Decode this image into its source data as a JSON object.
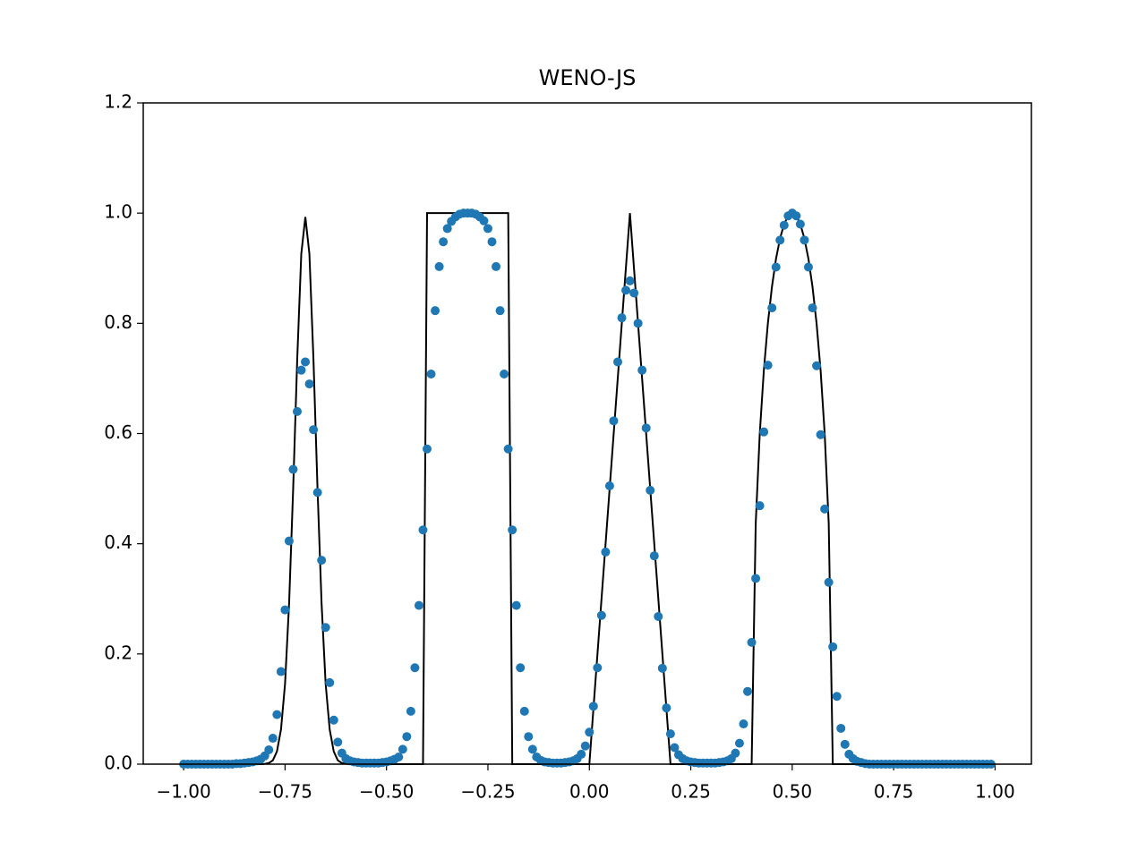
{
  "chart_data": {
    "type": "line",
    "title": "WENO-JS",
    "xlim": [
      -1.0995,
      1.0895
    ],
    "ylim": [
      0,
      1.2
    ],
    "xticks": [
      {
        "value": -1,
        "label": "−1.00"
      },
      {
        "value": -0.75,
        "label": "−0.75"
      },
      {
        "value": -0.5,
        "label": "−0.50"
      },
      {
        "value": -0.25,
        "label": "−0.25"
      },
      {
        "value": 0,
        "label": "0.00"
      },
      {
        "value": 0.25,
        "label": "0.25"
      },
      {
        "value": 0.5,
        "label": "0.50"
      },
      {
        "value": 0.75,
        "label": "0.75"
      },
      {
        "value": 1,
        "label": "1.00"
      }
    ],
    "yticks": [
      {
        "value": 0,
        "label": "0.0"
      },
      0.2,
      0.4,
      0.6,
      0.8,
      {
        "value": 1,
        "label": "1.0"
      },
      1.2
    ],
    "grid": false,
    "series": [
      {
        "type": "line",
        "color": "#000000",
        "x": [
          -1.0,
          -0.82,
          -0.81,
          -0.8,
          -0.79,
          -0.78,
          -0.77,
          -0.76,
          -0.75,
          -0.74,
          -0.73,
          -0.72,
          -0.71,
          -0.7,
          -0.69,
          -0.68,
          -0.67,
          -0.66,
          -0.65,
          -0.64,
          -0.63,
          -0.62,
          -0.61,
          -0.6,
          -0.59,
          -0.58,
          -0.41,
          -0.4,
          -0.2,
          -0.19,
          0.0,
          0.1,
          0.2,
          0.39,
          0.4,
          0.41,
          0.42,
          0.43,
          0.44,
          0.45,
          0.46,
          0.47,
          0.48,
          0.49,
          0.5,
          0.51,
          0.52,
          0.53,
          0.54,
          0.55,
          0.56,
          0.57,
          0.58,
          0.59,
          0.6,
          0.61,
          1.0
        ],
        "values": [
          0,
          0,
          0.0001,
          0.0005,
          0.002,
          0.007,
          0.023,
          0.063,
          0.146,
          0.292,
          0.5,
          0.735,
          0.926,
          0.993,
          0.926,
          0.735,
          0.5,
          0.292,
          0.146,
          0.063,
          0.023,
          0.007,
          0.002,
          0.0005,
          0.0001,
          0,
          0,
          1,
          1,
          0,
          0,
          1,
          0,
          0,
          0,
          0.436,
          0.6,
          0.714,
          0.8,
          0.866,
          0.917,
          0.954,
          0.98,
          0.995,
          1.0,
          0.995,
          0.98,
          0.954,
          0.917,
          0.866,
          0.8,
          0.714,
          0.6,
          0.436,
          0,
          0,
          0
        ]
      },
      {
        "type": "scatter",
        "color": "#1f77b4",
        "x": [
          -1.0,
          -0.99,
          -0.98,
          -0.97,
          -0.96,
          -0.95,
          -0.94,
          -0.93,
          -0.92,
          -0.91,
          -0.9,
          -0.89,
          -0.88,
          -0.87,
          -0.86,
          -0.85,
          -0.84,
          -0.83,
          -0.82,
          -0.81,
          -0.8,
          -0.79,
          -0.78,
          -0.77,
          -0.76,
          -0.75,
          -0.74,
          -0.73,
          -0.72,
          -0.71,
          -0.7,
          -0.69,
          -0.68,
          -0.67,
          -0.66,
          -0.65,
          -0.64,
          -0.63,
          -0.62,
          -0.61,
          -0.6,
          -0.59,
          -0.58,
          -0.57,
          -0.56,
          -0.55,
          -0.54,
          -0.53,
          -0.52,
          -0.51,
          -0.5,
          -0.49,
          -0.48,
          -0.47,
          -0.46,
          -0.45,
          -0.44,
          -0.43,
          -0.42,
          -0.41,
          -0.4,
          -0.39,
          -0.38,
          -0.37,
          -0.36,
          -0.35,
          -0.34,
          -0.33,
          -0.32,
          -0.31,
          -0.3,
          -0.29,
          -0.28,
          -0.27,
          -0.26,
          -0.25,
          -0.24,
          -0.23,
          -0.22,
          -0.21,
          -0.2,
          -0.19,
          -0.18,
          -0.17,
          -0.16,
          -0.15,
          -0.14,
          -0.13,
          -0.12,
          -0.11,
          -0.1,
          -0.09,
          -0.08,
          -0.07,
          -0.06,
          -0.05,
          -0.04,
          -0.03,
          -0.02,
          -0.01,
          0.0,
          0.01,
          0.02,
          0.03,
          0.04,
          0.05,
          0.06,
          0.07,
          0.08,
          0.09,
          0.1,
          0.11,
          0.12,
          0.13,
          0.14,
          0.15,
          0.16,
          0.17,
          0.18,
          0.19,
          0.2,
          0.21,
          0.22,
          0.23,
          0.24,
          0.25,
          0.26,
          0.27,
          0.28,
          0.29,
          0.3,
          0.31,
          0.32,
          0.33,
          0.34,
          0.35,
          0.36,
          0.37,
          0.38,
          0.39,
          0.4,
          0.41,
          0.42,
          0.43,
          0.44,
          0.45,
          0.46,
          0.47,
          0.48,
          0.49,
          0.5,
          0.51,
          0.52,
          0.53,
          0.54,
          0.55,
          0.56,
          0.57,
          0.58,
          0.59,
          0.6,
          0.61,
          0.62,
          0.63,
          0.64,
          0.65,
          0.66,
          0.67,
          0.68,
          0.69,
          0.7,
          0.71,
          0.72,
          0.73,
          0.74,
          0.75,
          0.76,
          0.77,
          0.78,
          0.79,
          0.8,
          0.81,
          0.82,
          0.83,
          0.84,
          0.85,
          0.86,
          0.87,
          0.88,
          0.89,
          0.9,
          0.91,
          0.92,
          0.93,
          0.94,
          0.95,
          0.96,
          0.97,
          0.98,
          0.99
        ],
        "values": [
          0,
          0,
          0,
          0,
          0,
          0,
          0,
          0,
          0,
          0,
          0,
          0,
          0,
          0.001,
          0.001,
          0.002,
          0.003,
          0.004,
          0.006,
          0.009,
          0.015,
          0.026,
          0.047,
          0.09,
          0.168,
          0.28,
          0.405,
          0.535,
          0.64,
          0.715,
          0.73,
          0.69,
          0.607,
          0.493,
          0.37,
          0.248,
          0.148,
          0.08,
          0.04,
          0.02,
          0.01,
          0.006,
          0.004,
          0.003,
          0.002,
          0.002,
          0.002,
          0.002,
          0.002,
          0.003,
          0.004,
          0.006,
          0.009,
          0.013,
          0.027,
          0.05,
          0.096,
          0.175,
          0.288,
          0.425,
          0.572,
          0.708,
          0.823,
          0.903,
          0.948,
          0.972,
          0.985,
          0.993,
          0.998,
          1.0,
          1.0,
          1.0,
          0.998,
          0.993,
          0.986,
          0.972,
          0.948,
          0.903,
          0.823,
          0.708,
          0.572,
          0.425,
          0.288,
          0.175,
          0.096,
          0.05,
          0.027,
          0.013,
          0.007,
          0.004,
          0.003,
          0.002,
          0.002,
          0.002,
          0.003,
          0.004,
          0.006,
          0.01,
          0.018,
          0.033,
          0.058,
          0.105,
          0.175,
          0.27,
          0.385,
          0.505,
          0.623,
          0.73,
          0.81,
          0.86,
          0.877,
          0.855,
          0.8,
          0.715,
          0.61,
          0.497,
          0.378,
          0.268,
          0.174,
          0.102,
          0.055,
          0.03,
          0.017,
          0.01,
          0.006,
          0.004,
          0.003,
          0.002,
          0.002,
          0.002,
          0.002,
          0.002,
          0.003,
          0.004,
          0.006,
          0.01,
          0.02,
          0.038,
          0.073,
          0.132,
          0.221,
          0.337,
          0.469,
          0.603,
          0.724,
          0.828,
          0.902,
          0.951,
          0.978,
          0.995,
          1.0,
          0.995,
          0.98,
          0.951,
          0.902,
          0.828,
          0.723,
          0.598,
          0.463,
          0.33,
          0.213,
          0.123,
          0.065,
          0.036,
          0.018,
          0.01,
          0.005,
          0.003,
          0.001,
          0,
          0,
          0,
          0,
          0,
          0,
          0,
          0,
          0,
          0,
          0,
          0,
          0,
          0,
          0,
          0,
          0,
          0,
          0,
          0,
          0,
          0,
          0,
          0,
          0,
          0,
          0,
          0,
          0,
          0,
          0
        ]
      }
    ]
  }
}
